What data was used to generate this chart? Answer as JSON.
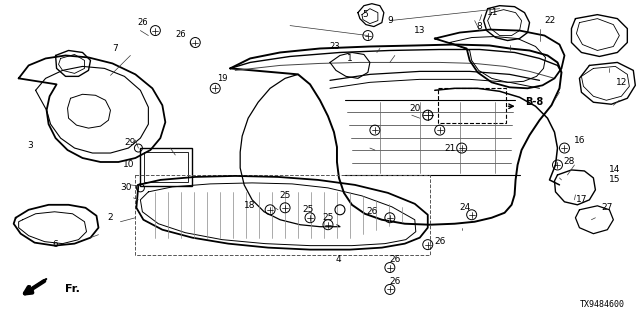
{
  "bg_color": "#ffffff",
  "diagram_id": "TX9484600",
  "figsize": [
    6.4,
    3.2
  ],
  "dpi": 100
}
